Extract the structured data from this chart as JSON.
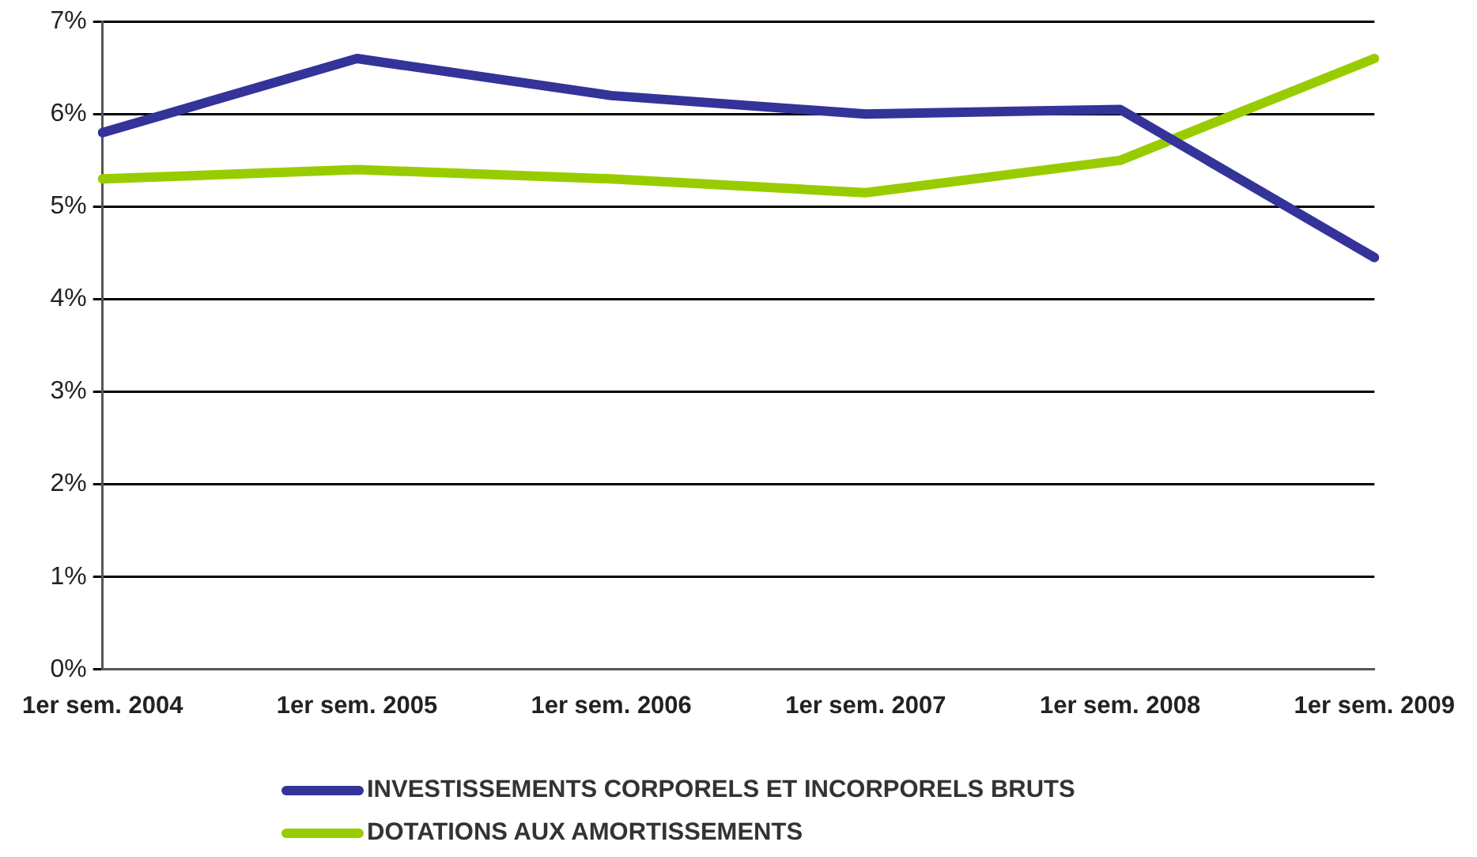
{
  "chart_data": {
    "type": "line",
    "categories": [
      "1er sem. 2004",
      "1er sem. 2005",
      "1er sem. 2006",
      "1er sem. 2007",
      "1er sem. 2008",
      "1er sem. 2009"
    ],
    "series": [
      {
        "name": "INVESTISSEMENTS CORPORELS ET INCORPORELS BRUTS",
        "color": "#333399",
        "values": [
          5.8,
          6.6,
          6.2,
          6.0,
          6.05,
          4.45
        ]
      },
      {
        "name": "DOTATIONS AUX AMORTISSEMENTS",
        "color": "#99cc00",
        "values": [
          5.3,
          5.4,
          5.3,
          5.15,
          5.5,
          6.6
        ]
      }
    ],
    "ylim": [
      0,
      7
    ],
    "yticks": [
      {
        "value": 0,
        "label": "0%"
      },
      {
        "value": 1,
        "label": "1%"
      },
      {
        "value": 2,
        "label": "2%"
      },
      {
        "value": 3,
        "label": "3%"
      },
      {
        "value": 4,
        "label": "4%"
      },
      {
        "value": 5,
        "label": "5%"
      },
      {
        "value": 6,
        "label": "6%"
      },
      {
        "value": 7,
        "label": "7%"
      }
    ],
    "grid": "y",
    "legend": "bottom",
    "marker": "none",
    "line_style": "solid"
  }
}
